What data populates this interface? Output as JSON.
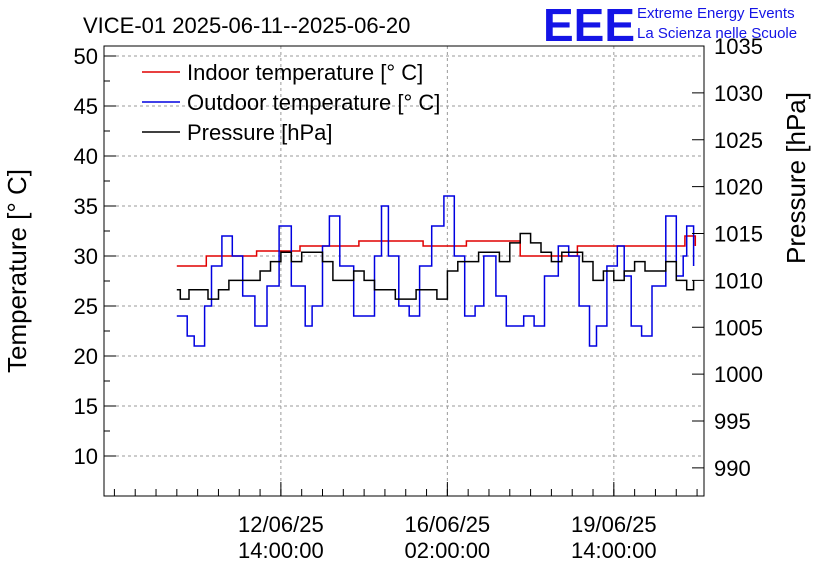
{
  "chart_data": {
    "type": "line",
    "title": "VICE-01 2025-06-11--2025-06-20",
    "ylabel_left": "Temperature [° C]",
    "ylabel_right": "Pressure [hPa]",
    "ylim_left": [
      6,
      51
    ],
    "ylim_right": [
      987,
      1035
    ],
    "yticks_left": [
      10,
      15,
      20,
      25,
      30,
      35,
      40,
      45,
      50
    ],
    "yticks_right": [
      990,
      995,
      1000,
      1005,
      1010,
      1015,
      1020,
      1025,
      1030,
      1035
    ],
    "xlim_hours": [
      -64,
      282
    ],
    "xticks": [
      {
        "hours": 38,
        "line1": "12/06/25",
        "line2": "14:00:00"
      },
      {
        "hours": 134,
        "line1": "16/06/25",
        "line2": "02:00:00"
      },
      {
        "hours": 230,
        "line1": "19/06/25",
        "line2": "14:00:00"
      }
    ],
    "grid": true,
    "legend": "top-left",
    "series": [
      {
        "name": "Indoor temperature [° C]",
        "color": "#e00000",
        "axis": "left",
        "x": [
          -22,
          -6,
          -5,
          23,
          24,
          48,
          49,
          82,
          83,
          119,
          120,
          144,
          145,
          175,
          176,
          208,
          209,
          270,
          271,
          276,
          277
        ],
        "y": [
          29,
          29,
          30,
          30,
          30.5,
          30.5,
          31,
          31,
          31.5,
          31.5,
          31,
          31,
          31.5,
          31.5,
          30,
          30,
          31,
          31,
          32,
          32,
          31
        ]
      },
      {
        "name": "Outdoor temperature [° C]",
        "color": "#0000e0",
        "axis": "left",
        "x": [
          -22,
          -16,
          -12,
          -6,
          -2,
          4,
          10,
          16,
          23,
          26,
          30,
          37,
          44,
          52,
          56,
          62,
          66,
          72,
          80,
          86,
          92,
          96,
          100,
          106,
          112,
          118,
          125,
          132,
          138,
          144,
          150,
          155,
          162,
          168,
          174,
          178,
          184,
          190,
          198,
          204,
          210,
          216,
          220,
          226,
          232,
          236,
          240,
          246,
          252,
          260,
          266,
          270,
          272,
          276
        ],
        "y": [
          24,
          22,
          21,
          25,
          29,
          32,
          30,
          26,
          23,
          23,
          27,
          33,
          27,
          23,
          25,
          31,
          34,
          29,
          24,
          24,
          30,
          35,
          30,
          25,
          24,
          29,
          33,
          36,
          30,
          24,
          25,
          30,
          26,
          23,
          23,
          24,
          23,
          28,
          31,
          30,
          25,
          21,
          23,
          29,
          31,
          28,
          23,
          22,
          27,
          34,
          28,
          30,
          33,
          29
        ]
      },
      {
        "name": "Pressure [hPa]",
        "color": "#000000",
        "axis": "right",
        "x": [
          -22,
          -20,
          -15,
          -10,
          -4,
          2,
          8,
          14,
          20,
          26,
          32,
          38,
          44,
          50,
          56,
          62,
          68,
          74,
          80,
          86,
          92,
          98,
          104,
          110,
          116,
          122,
          128,
          134,
          140,
          146,
          152,
          158,
          164,
          170,
          176,
          182,
          188,
          194,
          200,
          206,
          212,
          218,
          224,
          230,
          236,
          242,
          248,
          254,
          260,
          266,
          272,
          276
        ],
        "y": [
          1009,
          1008,
          1009,
          1009,
          1008,
          1009,
          1010,
          1010,
          1010,
          1011,
          1012,
          1013,
          1012,
          1013,
          1013,
          1012,
          1010,
          1010,
          1011,
          1010,
          1009,
          1009,
          1008,
          1008,
          1009,
          1009,
          1008,
          1011,
          1012,
          1012,
          1013,
          1013,
          1012,
          1014,
          1015,
          1014,
          1013,
          1012,
          1013,
          1013,
          1012,
          1010,
          1011,
          1010,
          1011,
          1012,
          1011,
          1011,
          1012,
          1010,
          1009,
          1010
        ]
      }
    ]
  },
  "logo": {
    "mark": "EEE",
    "line1": "Extreme Energy Events",
    "line2": "La Scienza nelle Scuole",
    "color": "#1414e6"
  }
}
